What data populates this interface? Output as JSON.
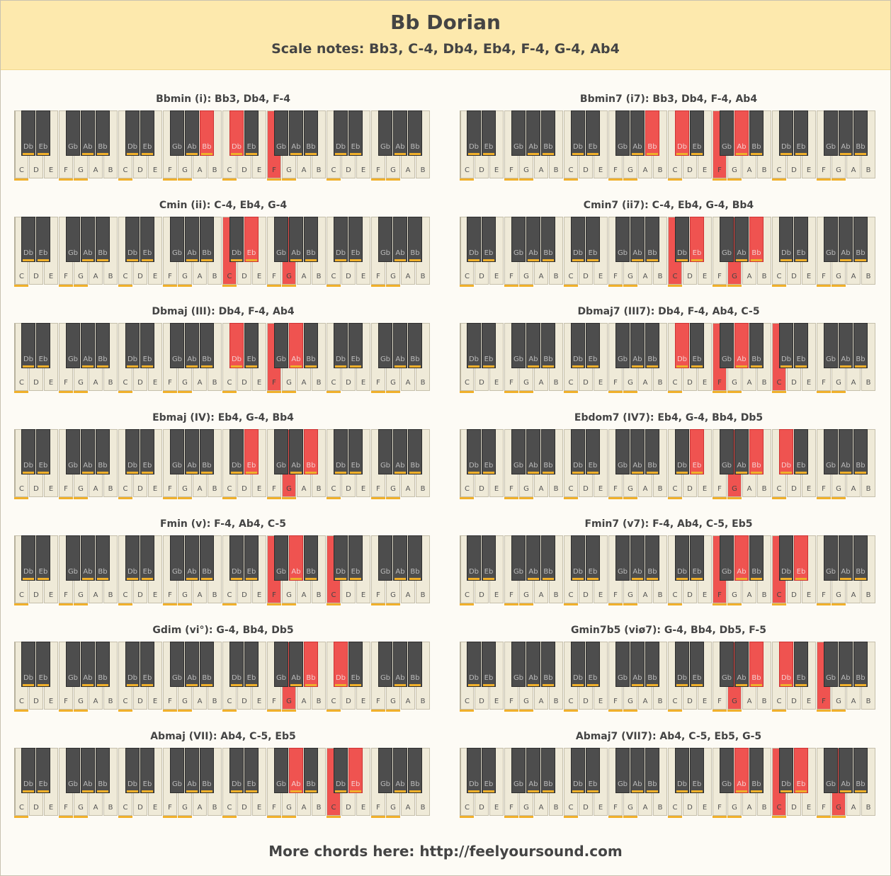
{
  "header": {
    "title": "Bb Dorian",
    "scale_notes": "Scale notes: Bb3, C-4, Db4, Eb4, F-4, G-4, Ab4"
  },
  "colors": {
    "header_bg": "#fde9ad",
    "highlight": "#ef5350",
    "scale_marker": "#f0b02b",
    "black_key": "#4d4d4d",
    "white_key": "#efead8"
  },
  "keyboard": {
    "white_labels": [
      "C",
      "D",
      "E",
      "F",
      "G",
      "A",
      "B"
    ],
    "black_labels": [
      "Db",
      "Eb",
      "Gb",
      "Ab",
      "Bb"
    ],
    "octaves": 4,
    "scale_white_labels": [
      "C",
      "F",
      "G"
    ],
    "scale_black_labels": [
      "Db",
      "Eb",
      "Ab",
      "Bb"
    ]
  },
  "chords": [
    {
      "title": "Bbmin (i): Bb3, Db4, F-4",
      "white": [
        [
          2,
          "F"
        ]
      ],
      "black": [
        [
          1,
          "Bb"
        ],
        [
          2,
          "Db"
        ]
      ]
    },
    {
      "title": "Bbmin7 (i7): Bb3, Db4, F-4, Ab4",
      "white": [
        [
          2,
          "F"
        ]
      ],
      "black": [
        [
          1,
          "Bb"
        ],
        [
          2,
          "Db"
        ],
        [
          2,
          "Ab"
        ]
      ]
    },
    {
      "title": "Cmin (ii): C-4, Eb4, G-4",
      "white": [
        [
          2,
          "C"
        ],
        [
          2,
          "G"
        ]
      ],
      "black": [
        [
          2,
          "Eb"
        ]
      ]
    },
    {
      "title": "Cmin7 (ii7): C-4, Eb4, G-4, Bb4",
      "white": [
        [
          2,
          "C"
        ],
        [
          2,
          "G"
        ]
      ],
      "black": [
        [
          2,
          "Eb"
        ],
        [
          2,
          "Bb"
        ]
      ]
    },
    {
      "title": "Dbmaj (III): Db4, F-4, Ab4",
      "white": [
        [
          2,
          "F"
        ]
      ],
      "black": [
        [
          2,
          "Db"
        ],
        [
          2,
          "Ab"
        ]
      ]
    },
    {
      "title": "Dbmaj7 (III7): Db4, F-4, Ab4, C-5",
      "white": [
        [
          2,
          "F"
        ],
        [
          3,
          "C"
        ]
      ],
      "black": [
        [
          2,
          "Db"
        ],
        [
          2,
          "Ab"
        ]
      ]
    },
    {
      "title": "Ebmaj (IV): Eb4, G-4, Bb4",
      "white": [
        [
          2,
          "G"
        ]
      ],
      "black": [
        [
          2,
          "Eb"
        ],
        [
          2,
          "Bb"
        ]
      ]
    },
    {
      "title": "Ebdom7 (IV7): Eb4, G-4, Bb4, Db5",
      "white": [
        [
          2,
          "G"
        ]
      ],
      "black": [
        [
          2,
          "Eb"
        ],
        [
          2,
          "Bb"
        ],
        [
          3,
          "Db"
        ]
      ]
    },
    {
      "title": "Fmin (v): F-4, Ab4, C-5",
      "white": [
        [
          2,
          "F"
        ],
        [
          3,
          "C"
        ]
      ],
      "black": [
        [
          2,
          "Ab"
        ]
      ]
    },
    {
      "title": "Fmin7 (v7): F-4, Ab4, C-5, Eb5",
      "white": [
        [
          2,
          "F"
        ],
        [
          3,
          "C"
        ]
      ],
      "black": [
        [
          2,
          "Ab"
        ],
        [
          3,
          "Eb"
        ]
      ]
    },
    {
      "title": "Gdim (vi°): G-4, Bb4, Db5",
      "white": [
        [
          2,
          "G"
        ]
      ],
      "black": [
        [
          2,
          "Bb"
        ],
        [
          3,
          "Db"
        ]
      ]
    },
    {
      "title": "Gmin7b5 (viø7): G-4, Bb4, Db5, F-5",
      "white": [
        [
          2,
          "G"
        ],
        [
          3,
          "F"
        ]
      ],
      "black": [
        [
          2,
          "Bb"
        ],
        [
          3,
          "Db"
        ]
      ]
    },
    {
      "title": "Abmaj (VII): Ab4, C-5, Eb5",
      "white": [
        [
          3,
          "C"
        ]
      ],
      "black": [
        [
          2,
          "Ab"
        ],
        [
          3,
          "Eb"
        ]
      ]
    },
    {
      "title": "Abmaj7 (VII7): Ab4, C-5, Eb5, G-5",
      "white": [
        [
          3,
          "C"
        ],
        [
          3,
          "G"
        ]
      ],
      "black": [
        [
          2,
          "Ab"
        ],
        [
          3,
          "Eb"
        ]
      ]
    }
  ],
  "footer": {
    "text": "More chords here:  http://feelyoursound.com"
  }
}
